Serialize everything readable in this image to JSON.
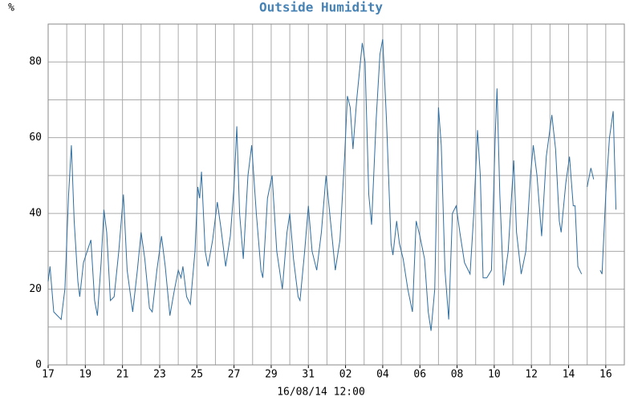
{
  "chart_data": {
    "type": "line",
    "title": "Outside Humidity",
    "ylabel": "%",
    "xlabel": "16/08/14 12:00",
    "color": "#2f6ea0",
    "title_color": "#4682b4",
    "grid": true,
    "xlim": [
      0,
      31
    ],
    "ylim": [
      0,
      90
    ],
    "xticks": [
      {
        "value": 0,
        "label": "17"
      },
      {
        "value": 2,
        "label": "19"
      },
      {
        "value": 4,
        "label": "21"
      },
      {
        "value": 6,
        "label": "23"
      },
      {
        "value": 8,
        "label": "25"
      },
      {
        "value": 10,
        "label": "27"
      },
      {
        "value": 12,
        "label": "29"
      },
      {
        "value": 14,
        "label": "31"
      },
      {
        "value": 16,
        "label": "02"
      },
      {
        "value": 18,
        "label": "04"
      },
      {
        "value": 20,
        "label": "06"
      },
      {
        "value": 22,
        "label": "08"
      },
      {
        "value": 24,
        "label": "10"
      },
      {
        "value": 26,
        "label": "12"
      },
      {
        "value": 28,
        "label": "14"
      },
      {
        "value": 30,
        "label": "16"
      }
    ],
    "xminor": [
      1,
      3,
      5,
      7,
      9,
      11,
      13,
      15,
      17,
      19,
      21,
      23,
      25,
      27,
      29
    ],
    "yticks": [
      0,
      20,
      40,
      60,
      80
    ],
    "yminor": [
      10,
      30,
      50,
      70
    ],
    "x": [
      0,
      0.1,
      0.3,
      0.5,
      0.7,
      0.9,
      1.1,
      1.25,
      1.4,
      1.6,
      1.7,
      1.9,
      2.1,
      2.3,
      2.5,
      2.65,
      2.85,
      3.0,
      3.15,
      3.35,
      3.55,
      3.8,
      4.05,
      4.25,
      4.55,
      4.8,
      5.0,
      5.2,
      5.45,
      5.6,
      5.85,
      6.1,
      6.3,
      6.55,
      6.8,
      7.0,
      7.15,
      7.25,
      7.45,
      7.65,
      7.9,
      8.05,
      8.15,
      8.25,
      8.45,
      8.6,
      8.85,
      9.1,
      9.3,
      9.55,
      9.8,
      10.0,
      10.15,
      10.3,
      10.5,
      10.75,
      10.95,
      11.2,
      11.45,
      11.55,
      11.8,
      12.05,
      12.3,
      12.6,
      12.85,
      13.0,
      13.2,
      13.45,
      13.55,
      13.8,
      14.0,
      14.2,
      14.45,
      14.7,
      14.95,
      15.15,
      15.45,
      15.7,
      15.95,
      16.1,
      16.25,
      16.4,
      16.6,
      16.9,
      17.05,
      17.25,
      17.4,
      17.65,
      17.85,
      18.0,
      18.2,
      18.45,
      18.55,
      18.75,
      18.9,
      19.1,
      19.35,
      19.6,
      19.8,
      20.0,
      20.25,
      20.45,
      20.6,
      20.8,
      21.0,
      21.15,
      21.35,
      21.55,
      21.75,
      21.95,
      22.15,
      22.4,
      22.7,
      22.9,
      23.1,
      23.25,
      23.4,
      23.6,
      23.85,
      24.05,
      24.15,
      24.3,
      24.5,
      24.75,
      25.05,
      25.2,
      25.45,
      25.7,
      25.95,
      26.1,
      26.3,
      26.55,
      26.8,
      27.1,
      27.3,
      27.5,
      27.6,
      27.85,
      28.05,
      28.25,
      28.35,
      28.5,
      28.7,
      28.8,
      29.0,
      29.2,
      29.35,
      29.5,
      29.7,
      29.8,
      30.0,
      30.2,
      30.4,
      30.55
    ],
    "values": [
      22,
      26,
      14,
      13,
      12,
      20,
      45,
      58,
      38,
      22,
      18,
      27,
      30,
      33,
      17,
      13,
      27,
      41,
      35,
      17,
      18,
      30,
      45,
      25,
      14,
      25,
      35,
      28,
      15,
      14,
      25,
      34,
      26,
      13,
      20,
      25,
      23,
      26,
      18,
      16,
      30,
      47,
      44,
      51,
      30,
      26,
      33,
      43,
      36,
      26,
      34,
      47,
      63,
      40,
      28,
      50,
      58,
      40,
      25,
      23,
      44,
      50,
      30,
      20,
      35,
      40,
      28,
      18,
      17,
      30,
      42,
      30,
      25,
      35,
      50,
      40,
      25,
      33,
      55,
      71,
      68,
      57,
      70,
      85,
      80,
      45,
      37,
      65,
      82,
      86,
      65,
      32,
      29,
      38,
      32,
      28,
      20,
      14,
      38,
      34,
      28,
      14,
      9,
      20,
      68,
      58,
      25,
      12,
      40,
      42,
      35,
      27,
      24,
      40,
      62,
      50,
      23,
      23,
      25,
      60,
      73,
      45,
      21,
      30,
      54,
      35,
      24,
      30,
      50,
      58,
      50,
      34,
      55,
      66,
      57,
      38,
      35,
      48,
      55,
      42,
      42,
      26,
      24,
      null,
      47,
      52,
      49,
      null,
      25,
      24,
      45,
      60,
      67,
      41
    ]
  }
}
